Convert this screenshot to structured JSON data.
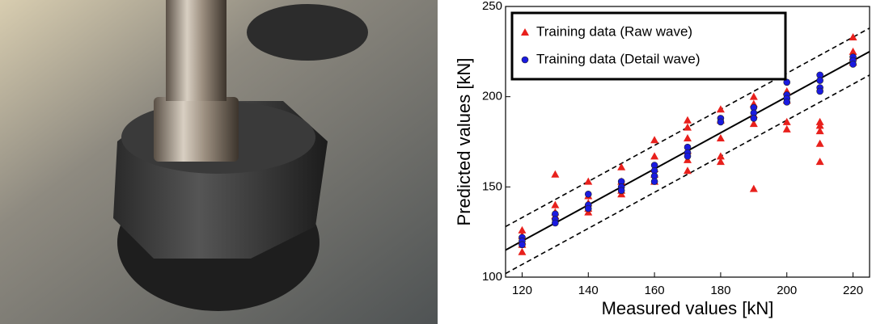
{
  "chart_data": {
    "type": "scatter",
    "xlabel": "Measured values [kN]",
    "ylabel": "Predicted values [kN]",
    "xlim": [
      115,
      225
    ],
    "xticks": [
      120,
      140,
      160,
      180,
      200,
      220
    ],
    "ylim": [
      100,
      250
    ],
    "yticks": [
      100,
      150,
      200,
      250
    ],
    "legend": "upper left",
    "reference_lines": [
      {
        "offset": 0,
        "dashed": false
      },
      {
        "offset": 13,
        "dashed": true
      },
      {
        "offset": -13,
        "dashed": true
      }
    ],
    "series": [
      {
        "name": "Training data (Raw wave)",
        "color": "#e8201c",
        "marker": "triangle",
        "x": [
          120,
          120,
          120,
          120,
          120,
          130,
          130,
          130,
          130,
          140,
          140,
          140,
          140,
          140,
          150,
          150,
          150,
          150,
          160,
          160,
          160,
          160,
          160,
          170,
          170,
          170,
          170,
          170,
          170,
          180,
          180,
          180,
          180,
          180,
          190,
          190,
          190,
          190,
          190,
          200,
          200,
          200,
          200,
          210,
          210,
          210,
          210,
          210,
          220,
          220,
          220,
          220
        ],
        "y": [
          126,
          123,
          120,
          118,
          114,
          157,
          140,
          136,
          134,
          153,
          145,
          141,
          138,
          136,
          161,
          153,
          148,
          146,
          176,
          167,
          160,
          157,
          153,
          187,
          183,
          177,
          170,
          165,
          159,
          193,
          187,
          177,
          167,
          164,
          200,
          196,
          190,
          185,
          149,
          203,
          198,
          186,
          182,
          186,
          184,
          181,
          174,
          164,
          233,
          225,
          222,
          219
        ]
      },
      {
        "name": "Training data (Detail wave)",
        "color": "#1a1ae0",
        "marker": "circle",
        "x": [
          120,
          120,
          120,
          130,
          130,
          130,
          140,
          140,
          140,
          150,
          150,
          150,
          160,
          160,
          160,
          160,
          170,
          170,
          170,
          180,
          180,
          190,
          190,
          190,
          200,
          200,
          200,
          200,
          210,
          210,
          210,
          210,
          220,
          220,
          220
        ],
        "y": [
          122,
          120,
          118,
          135,
          132,
          130,
          146,
          140,
          138,
          153,
          150,
          148,
          162,
          159,
          156,
          153,
          172,
          169,
          167,
          188,
          186,
          194,
          191,
          188,
          208,
          201,
          199,
          197,
          212,
          209,
          205,
          203,
          222,
          220,
          218
        ]
      }
    ]
  }
}
